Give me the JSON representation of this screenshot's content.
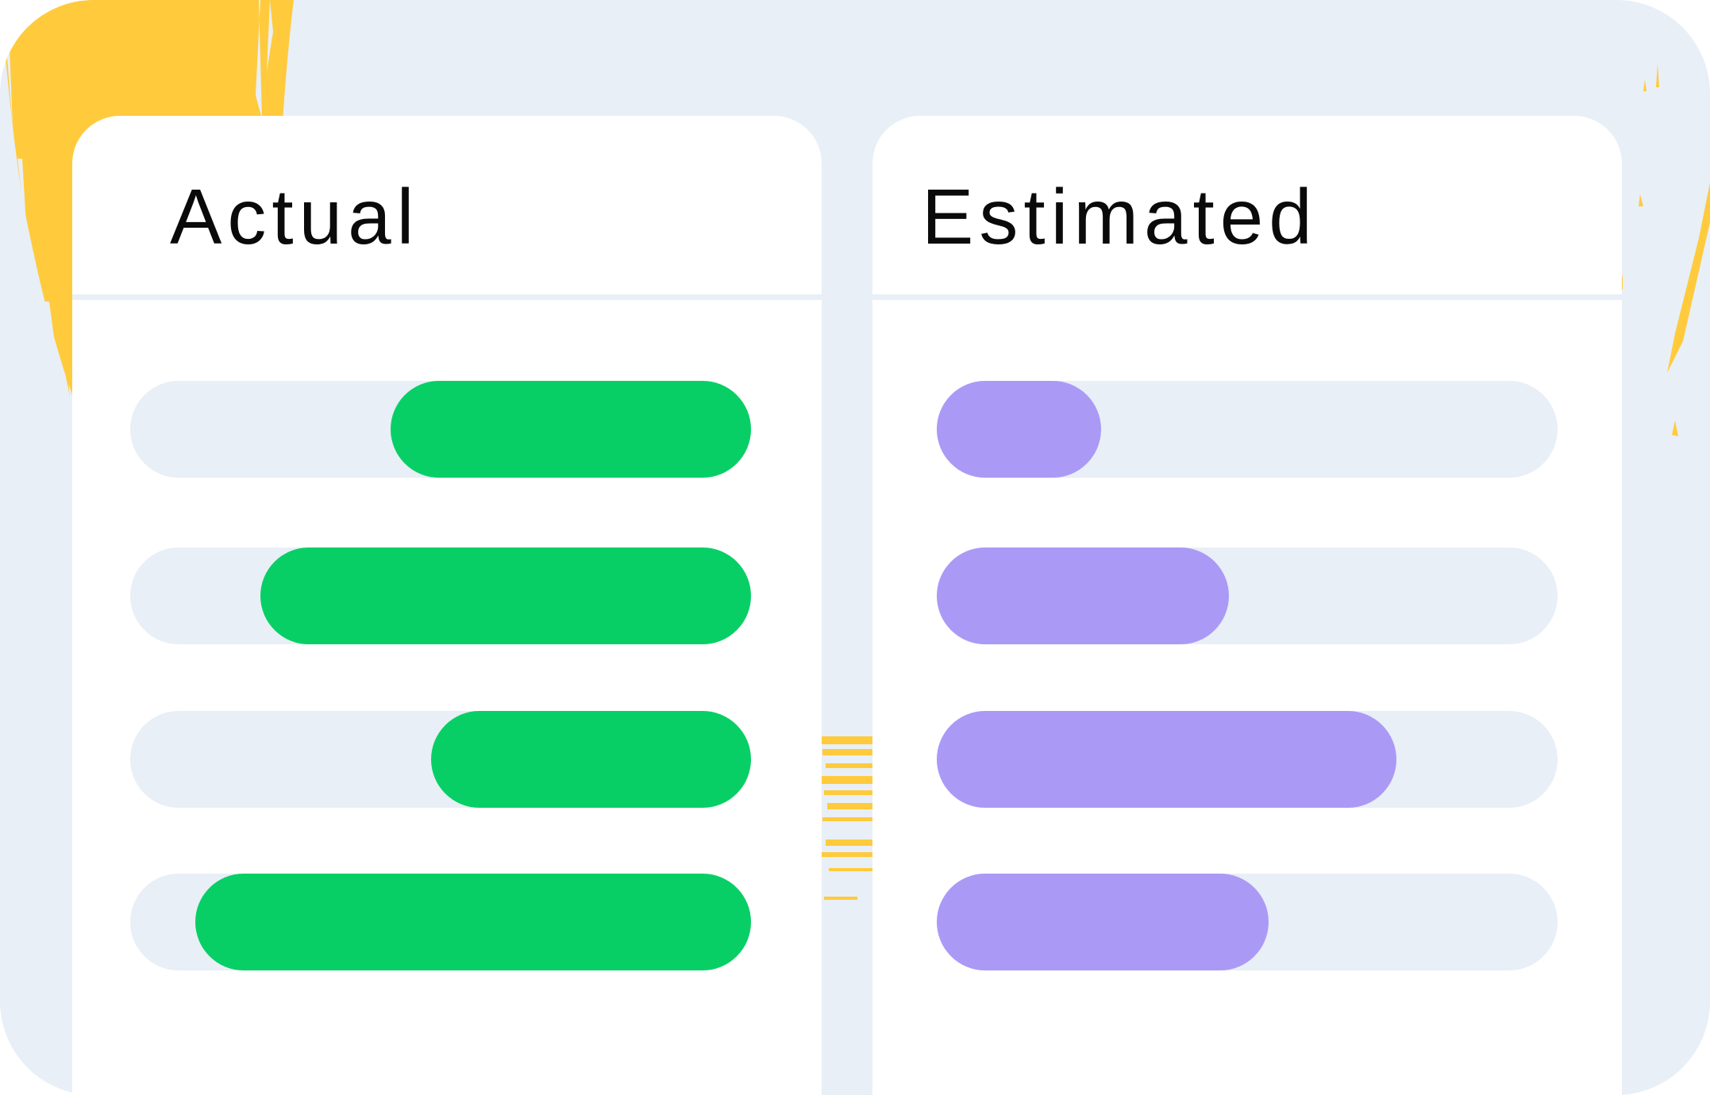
{
  "colors": {
    "background": "#e8eff6",
    "card": "#ffffff",
    "track": "#e8eff6",
    "actual_fill": "#08cf65",
    "estimated_fill": "#ab99f6",
    "accent_brush": "#ffcb3d",
    "title_text": "#0a0a0a"
  },
  "actual": {
    "title": "Actual",
    "bars": [
      {
        "start": 0.42,
        "end": 1.0
      },
      {
        "start": 0.21,
        "end": 1.0
      },
      {
        "start": 0.485,
        "end": 1.0
      },
      {
        "start": 0.105,
        "end": 1.0
      }
    ]
  },
  "estimated": {
    "title": "Estimated",
    "bars": [
      {
        "start": 0.0,
        "end": 0.265
      },
      {
        "start": 0.0,
        "end": 0.47
      },
      {
        "start": 0.0,
        "end": 0.74
      },
      {
        "start": 0.0,
        "end": 0.535
      }
    ]
  }
}
